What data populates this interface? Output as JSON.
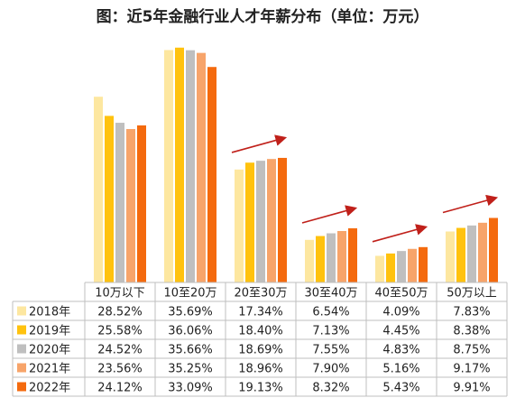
{
  "chart_data": {
    "type": "bar",
    "title": "图：近5年金融行业人才年薪分布（单位：万元）",
    "categories": [
      "10万以下",
      "10至20万",
      "20至30万",
      "30至40万",
      "40至50万",
      "50万以上"
    ],
    "unit": "%",
    "series": [
      {
        "name": "2018年",
        "color": "#FDE7A0",
        "values": [
          28.52,
          35.69,
          17.34,
          6.54,
          4.09,
          7.83
        ],
        "labels": [
          "28.52%",
          "35.69%",
          "17.34%",
          "6.54%",
          "4.09%",
          "7.83%"
        ]
      },
      {
        "name": "2019年",
        "color": "#FFC20E",
        "values": [
          25.58,
          36.06,
          18.4,
          7.13,
          4.45,
          8.38
        ],
        "labels": [
          "25.58%",
          "36.06%",
          "18.40%",
          "7.13%",
          "4.45%",
          "8.38%"
        ]
      },
      {
        "name": "2020年",
        "color": "#BFBFBF",
        "values": [
          24.52,
          35.66,
          18.69,
          7.55,
          4.83,
          8.75
        ],
        "labels": [
          "24.52%",
          "35.66%",
          "18.69%",
          "7.55%",
          "4.83%",
          "8.75%"
        ]
      },
      {
        "name": "2021年",
        "color": "#F7A46A",
        "values": [
          23.56,
          35.25,
          18.96,
          7.9,
          5.16,
          9.17
        ],
        "labels": [
          "23.56%",
          "35.25%",
          "18.96%",
          "7.90%",
          "5.16%",
          "9.17%"
        ]
      },
      {
        "name": "2022年",
        "color": "#F46A0E",
        "values": [
          24.12,
          33.09,
          19.13,
          8.32,
          5.43,
          9.91
        ],
        "labels": [
          "24.12%",
          "33.09%",
          "19.13%",
          "8.32%",
          "5.43%",
          "9.91%"
        ]
      }
    ],
    "ylim": [
      0,
      37
    ],
    "grid": false,
    "legend": "table-left",
    "annotations": {
      "trend_arrow_color": "#C0201A",
      "trend_arrow_categories": [
        "20至30万",
        "30至40万",
        "40至50万",
        "50万以上"
      ]
    }
  }
}
